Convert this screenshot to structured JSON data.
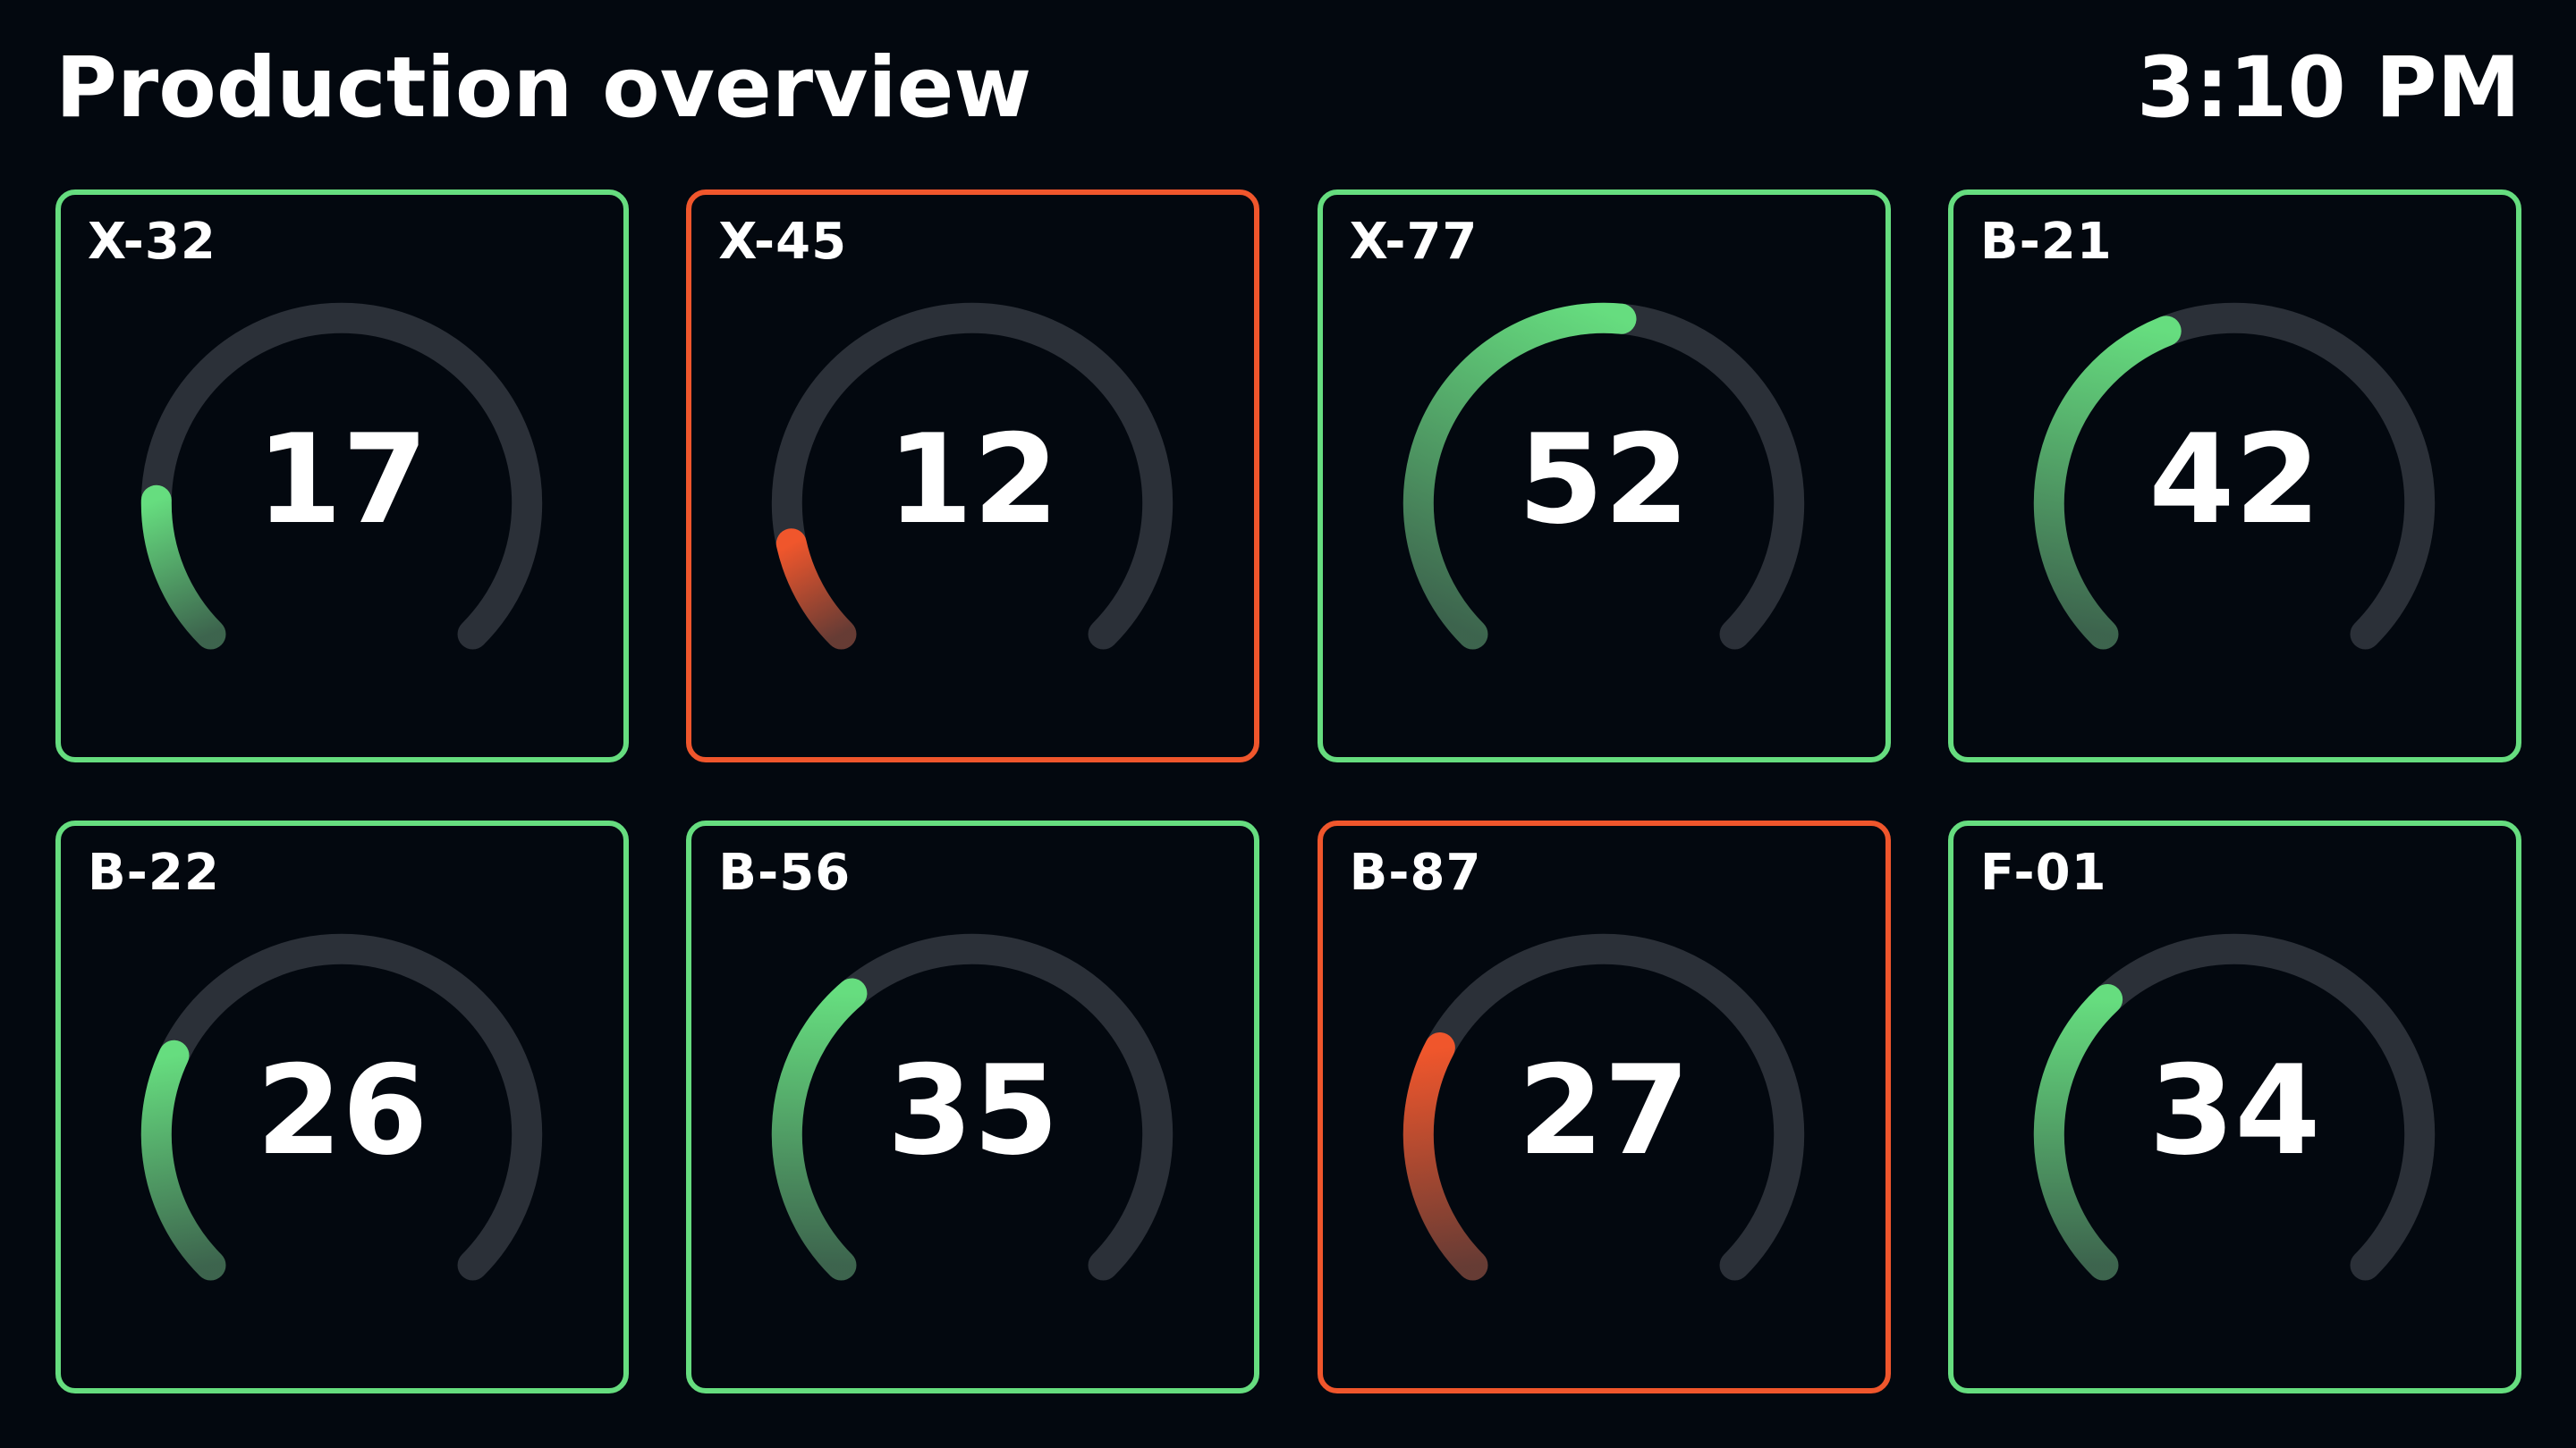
{
  "header": {
    "title": "Production overview",
    "time": "3:10 PM"
  },
  "colors": {
    "background": "#03080f",
    "ok": "#66dd7f",
    "alert": "#f0562c",
    "track": "#2b3038"
  },
  "gauge_scale": {
    "min": 0,
    "max": 100
  },
  "machines": [
    {
      "id": "X-32",
      "value": 17,
      "status": "ok"
    },
    {
      "id": "X-45",
      "value": 12,
      "status": "alert"
    },
    {
      "id": "X-77",
      "value": 52,
      "status": "ok"
    },
    {
      "id": "B-21",
      "value": 42,
      "status": "ok"
    },
    {
      "id": "B-22",
      "value": 26,
      "status": "ok"
    },
    {
      "id": "B-56",
      "value": 35,
      "status": "ok"
    },
    {
      "id": "B-87",
      "value": 27,
      "status": "alert"
    },
    {
      "id": "F-01",
      "value": 34,
      "status": "ok"
    }
  ]
}
